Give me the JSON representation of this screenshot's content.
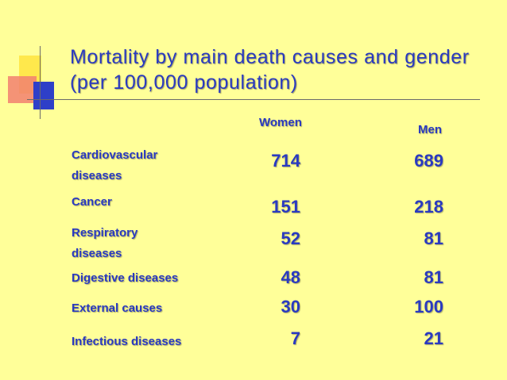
{
  "title": "Mortality by main death causes and gender (per 100,000 population)",
  "columns": {
    "women": "Women",
    "men": "Men"
  },
  "rows": [
    {
      "cause": "Cardiovascular diseases",
      "women": "714",
      "men": "689"
    },
    {
      "cause": "Cancer",
      "women": "151",
      "men": "218"
    },
    {
      "cause": "Respiratory diseases",
      "women": "52",
      "men": "81"
    },
    {
      "cause": "Digestive diseases",
      "women": "48",
      "men": "81"
    },
    {
      "cause": "External causes",
      "women": "30",
      "men": "100"
    },
    {
      "cause": "Infectious diseases",
      "women": "7",
      "men": "21"
    }
  ],
  "colors": {
    "background": "#FFFF99",
    "text": "#2A3AC0"
  }
}
